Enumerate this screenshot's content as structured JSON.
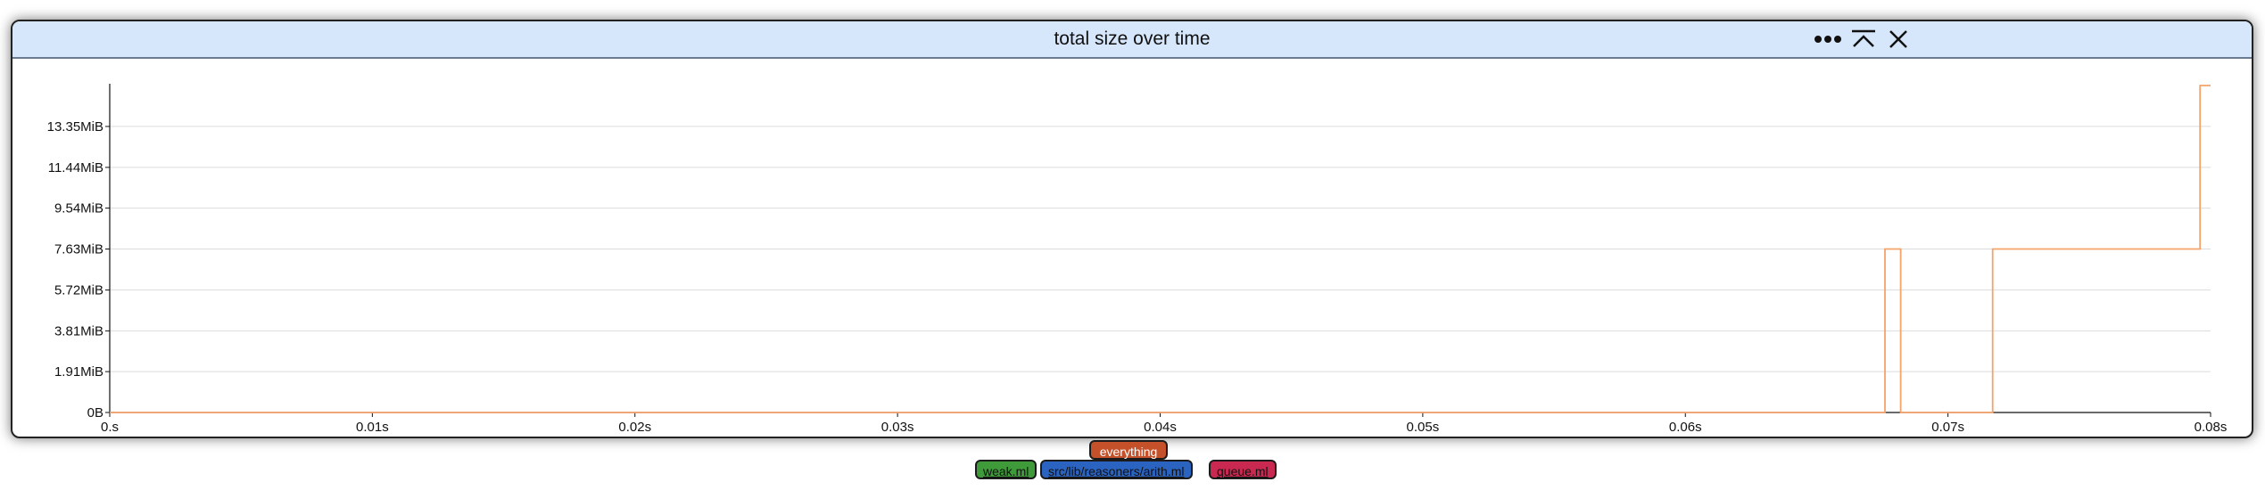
{
  "window": {
    "title": "total size over time",
    "toolbar": {
      "more_icon": "more-horizontal-icon",
      "collapse_icon": "collapse-up-icon",
      "close_icon": "close-icon"
    }
  },
  "colors": {
    "series_line": "#f4a36b",
    "titlebar_bg": "#d6e6fb",
    "grid": "#dcdcdc",
    "tag_everything": "#c4512a",
    "tag_weak": "#3f9a39",
    "tag_arith": "#2a63c0",
    "tag_queue": "#c92850"
  },
  "chart_data": {
    "type": "line",
    "step": true,
    "title": "total size over time",
    "xlabel": "",
    "ylabel": "",
    "x_unit": "s",
    "xlim": [
      0,
      0.08
    ],
    "x_ticks": [
      0,
      0.01,
      0.02,
      0.03,
      0.04,
      0.05,
      0.06,
      0.07,
      0.08
    ],
    "x_tick_labels": [
      "0.s",
      "0.01s",
      "0.02s",
      "0.03s",
      "0.04s",
      "0.05s",
      "0.06s",
      "0.07s",
      "0.08s"
    ],
    "ylim_MiB": [
      0,
      15.26
    ],
    "y_ticks_MiB": [
      0,
      1.91,
      3.81,
      5.72,
      7.63,
      9.54,
      11.44,
      13.35
    ],
    "y_tick_labels": [
      "0B",
      "1.91MiB",
      "3.81MiB",
      "5.72MiB",
      "7.63MiB",
      "9.54MiB",
      "11.44MiB",
      "13.35MiB"
    ],
    "grid": true,
    "series": [
      {
        "name": "everything",
        "x": [
          0,
          0.0676,
          0.0676,
          0.0682,
          0.0682,
          0.0717,
          0.0717,
          0.0796,
          0.0796,
          0.08
        ],
        "y": [
          0,
          0,
          7.63,
          7.63,
          0,
          0,
          7.63,
          7.63,
          15.26,
          15.26
        ]
      }
    ]
  },
  "legend": {
    "main": "everything",
    "items": [
      "weak.ml",
      "src/lib/reasoners/arith.ml",
      "queue.ml"
    ]
  }
}
